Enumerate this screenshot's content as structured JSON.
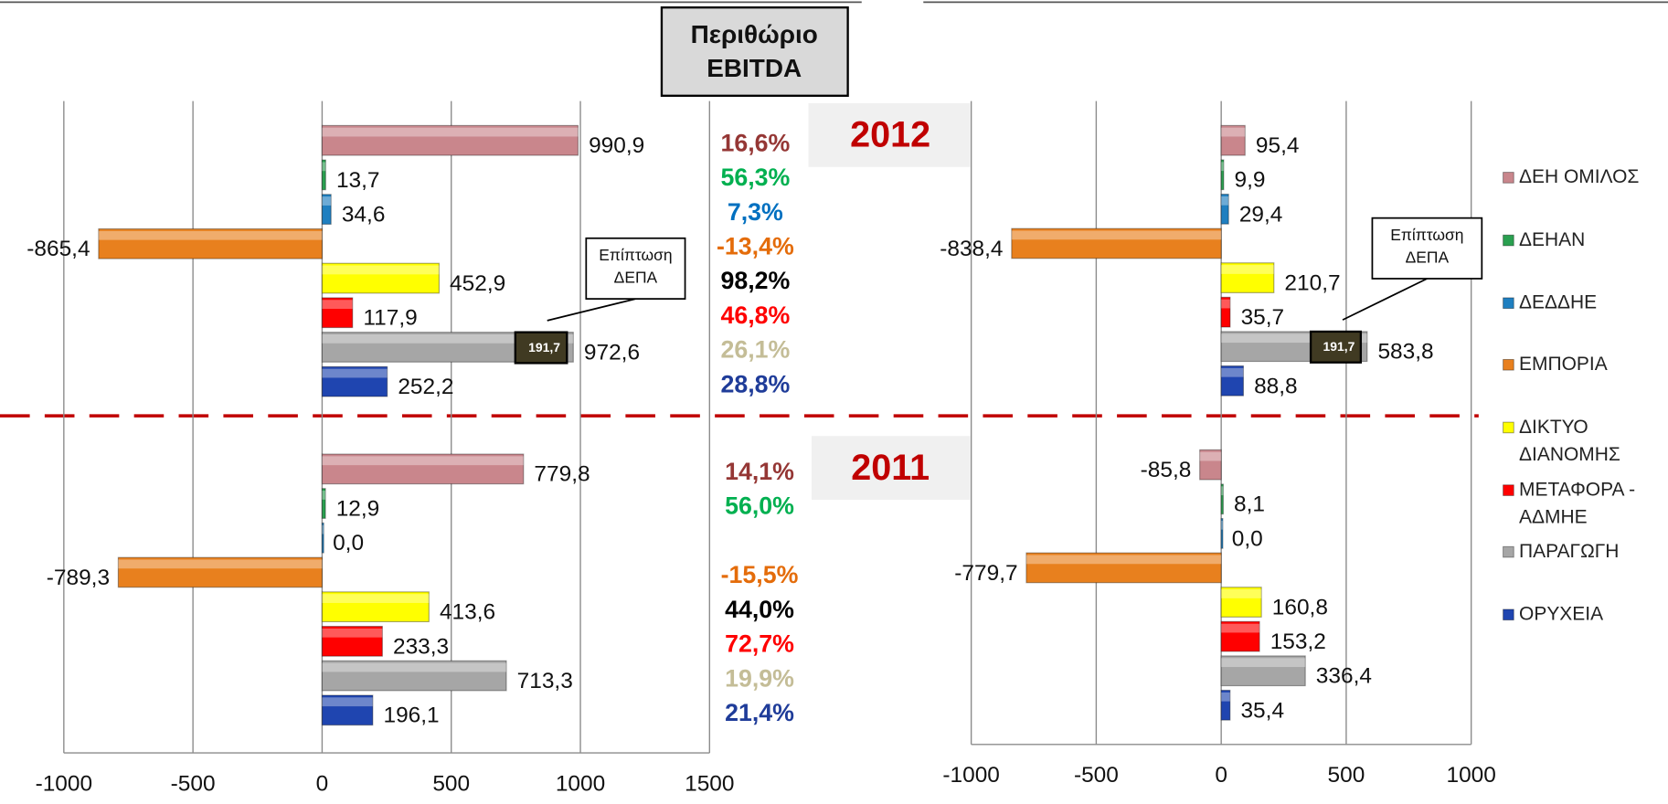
{
  "chart_data": [
    {
      "type": "bar",
      "orientation": "horizontal",
      "groups": [
        "2012",
        "2011"
      ],
      "xlim": [
        -1000,
        1500
      ],
      "xticks": [
        -1000,
        -500,
        0,
        500,
        1000,
        1500
      ],
      "grid": true,
      "margin_title": [
        "Περιθώριο",
        "EBITDA"
      ],
      "series": [
        {
          "color": "#c9868c",
          "values": [
            990.9,
            779.8
          ],
          "value_labels": [
            "990,9",
            "779,8"
          ],
          "margins": [
            16.6,
            14.1
          ],
          "margin_labels": [
            "16,6%",
            "14,1%"
          ],
          "margin_color": "#953735"
        },
        {
          "color": "#2aa050",
          "values": [
            13.7,
            12.9
          ],
          "value_labels": [
            "13,7",
            "12,9"
          ],
          "margins": [
            56.3,
            56.0
          ],
          "margin_labels": [
            "56,3%",
            "56,0%"
          ],
          "margin_color": "#00b050"
        },
        {
          "color": "#1f7fc0",
          "values": [
            34.6,
            0.0
          ],
          "value_labels": [
            "34,6",
            "0,0"
          ],
          "margins": [
            7.3,
            null
          ],
          "margin_labels": [
            "7,3%",
            null
          ],
          "margin_color": "#0070c0"
        },
        {
          "color": "#e8801e",
          "values": [
            -865.4,
            -789.3
          ],
          "value_labels": [
            "-865,4",
            "-789,3"
          ],
          "margins": [
            -13.4,
            -15.5
          ],
          "margin_labels": [
            "-13,4%",
            "-15,5%"
          ],
          "margin_color": "#e46c0a"
        },
        {
          "color": "#ffff00",
          "values": [
            452.9,
            413.6
          ],
          "value_labels": [
            "452,9",
            "413,6"
          ],
          "margins": [
            98.2,
            44.0
          ],
          "margin_labels": [
            "98,2%",
            "44,0%"
          ],
          "margin_color": "#000000"
        },
        {
          "color": "#ff0000",
          "values": [
            117.9,
            233.3
          ],
          "value_labels": [
            "117,9",
            "233,3"
          ],
          "margins": [
            46.8,
            72.7
          ],
          "margin_labels": [
            "46,8%",
            "72,7%"
          ],
          "margin_color": "#ff0000"
        },
        {
          "color": "#a6a6a6",
          "values": [
            972.6,
            713.3
          ],
          "value_labels": [
            "972,6",
            "713,3"
          ],
          "margins": [
            26.1,
            19.9
          ],
          "margin_labels": [
            "26,1%",
            "19,9%"
          ],
          "margin_color": "#c4bd97",
          "annotation": {
            "text": [
              "Επίπτωση",
              "ΔΕΠΑ"
            ],
            "value": 191.7,
            "value_label": "191,7"
          }
        },
        {
          "color": "#1f45b0",
          "values": [
            252.2,
            196.1
          ],
          "value_labels": [
            "252,2",
            "196,1"
          ],
          "margins": [
            28.8,
            21.4
          ],
          "margin_labels": [
            "28,8%",
            "21,4%"
          ],
          "margin_color": "#1f3c99"
        }
      ]
    },
    {
      "type": "bar",
      "orientation": "horizontal",
      "xlim": [
        -1000,
        1000
      ],
      "xticks": [
        -1000,
        -500,
        0,
        500,
        1000
      ],
      "grid": true,
      "legend": "right",
      "series": [
        {
          "name": "ΔΕΗ ΟΜΙΛΟΣ",
          "color": "#c9868c",
          "values": [
            95.4,
            -85.8
          ],
          "value_labels": [
            "95,4",
            "-85,8"
          ]
        },
        {
          "name": "ΔΕΗΑΝ",
          "color": "#2aa050",
          "values": [
            9.9,
            8.1
          ],
          "value_labels": [
            "9,9",
            "8,1"
          ]
        },
        {
          "name": "ΔΕΔΔΗΕ",
          "color": "#1f7fc0",
          "values": [
            29.4,
            0.0
          ],
          "value_labels": [
            "29,4",
            "0,0"
          ]
        },
        {
          "name": "ΕΜΠΟΡΙΑ",
          "color": "#e8801e",
          "values": [
            -838.4,
            -779.7
          ],
          "value_labels": [
            "-838,4",
            "-779,7"
          ]
        },
        {
          "name": "ΔΙΚΤΥΟ ΔΙΑΝΟΜΗΣ",
          "color": "#ffff00",
          "values": [
            210.7,
            160.8
          ],
          "value_labels": [
            "210,7",
            "160,8"
          ]
        },
        {
          "name": "ΜΕΤΑΦΟΡΑ - ΑΔΜΗΕ",
          "color": "#ff0000",
          "values": [
            35.7,
            153.2
          ],
          "value_labels": [
            "35,7",
            "153,2"
          ]
        },
        {
          "name": "ΠΑΡΑΓΩΓΗ",
          "color": "#a6a6a6",
          "values": [
            583.8,
            336.4
          ],
          "value_labels": [
            "583,8",
            "336,4"
          ],
          "annotation": {
            "text": [
              "Επίπτωση",
              "ΔΕΠΑ"
            ],
            "value": 191.7,
            "value_label": "191,7"
          }
        },
        {
          "name": "ΟΡΥΧΕΙΑ",
          "color": "#1f45b0",
          "values": [
            88.8,
            35.4
          ],
          "value_labels": [
            "88,8",
            "35,4"
          ]
        }
      ]
    }
  ]
}
